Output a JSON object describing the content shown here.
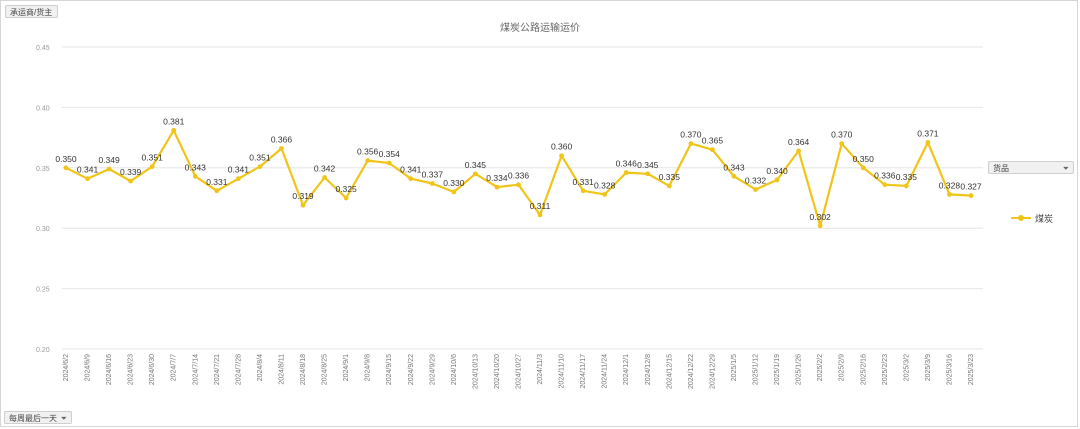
{
  "filter_pills": {
    "top": "承运商/货主",
    "bottom": "每周最后一天",
    "legend": "货品"
  },
  "icons": {
    "filter": "filter-icon"
  },
  "colors": {
    "series": "#f0c419",
    "grid": "#e6e6e6",
    "text": "#555555"
  },
  "chart_data": {
    "type": "line",
    "title": "煤炭公路运输运价",
    "xlabel": "",
    "ylabel": "",
    "ylim": [
      0.2,
      0.45
    ],
    "yticks": [
      "0.20",
      "0.25",
      "0.30",
      "0.35",
      "0.40",
      "0.45"
    ],
    "grid": true,
    "legend_position": "right",
    "categories": [
      "2024/6/2",
      "2024/6/9",
      "2024/6/16",
      "2024/6/23",
      "2024/6/30",
      "2024/7/7",
      "2024/7/14",
      "2024/7/21",
      "2024/7/28",
      "2024/8/4",
      "2024/8/11",
      "2024/8/18",
      "2024/8/25",
      "2024/9/1",
      "2024/9/8",
      "2024/9/15",
      "2024/9/22",
      "2024/9/29",
      "2024/10/6",
      "2024/10/13",
      "2024/10/20",
      "2024/10/27",
      "2024/11/3",
      "2024/11/10",
      "2024/11/17",
      "2024/11/24",
      "2024/12/1",
      "2024/12/8",
      "2024/12/15",
      "2024/12/22",
      "2024/12/29",
      "2025/1/5",
      "2025/1/12",
      "2025/1/19",
      "2025/1/26",
      "2025/2/2",
      "2025/2/9",
      "2025/2/16",
      "2025/2/23",
      "2025/3/2",
      "2025/3/9",
      "2025/3/16",
      "2025/3/23"
    ],
    "series": [
      {
        "name": "煤炭",
        "values": [
          0.35,
          0.341,
          0.349,
          0.339,
          0.351,
          0.381,
          0.343,
          0.331,
          0.341,
          0.351,
          0.366,
          0.319,
          0.342,
          0.325,
          0.356,
          0.354,
          0.341,
          0.337,
          0.33,
          0.345,
          0.334,
          0.336,
          0.311,
          0.36,
          0.331,
          0.328,
          0.346,
          0.345,
          0.335,
          0.37,
          0.365,
          0.343,
          0.332,
          0.34,
          0.364,
          0.302,
          0.37,
          0.35,
          0.336,
          0.335,
          0.371,
          0.328,
          0.327
        ],
        "labels": [
          "0.350",
          "0.341",
          "0.349",
          "0.339",
          "0.351",
          "0.381",
          "0.343",
          "0.331",
          "0.341",
          "0.351",
          "0.366",
          "0.319",
          "0.342",
          "0.325",
          "0.356",
          "0.354",
          "0.341",
          "0.337",
          "0.330",
          "0.345",
          "0.334",
          "0.336",
          "0.311",
          "0.360",
          "0.331",
          "0.328",
          "0.346",
          "0.345",
          "0.335",
          "0.370",
          "0.365",
          "0.343",
          "0.332",
          "0.340",
          "0.364",
          "0.302",
          "0.370",
          "0.350",
          "0.336",
          "0.335",
          "0.371",
          "0.328",
          "0.327"
        ]
      }
    ]
  }
}
